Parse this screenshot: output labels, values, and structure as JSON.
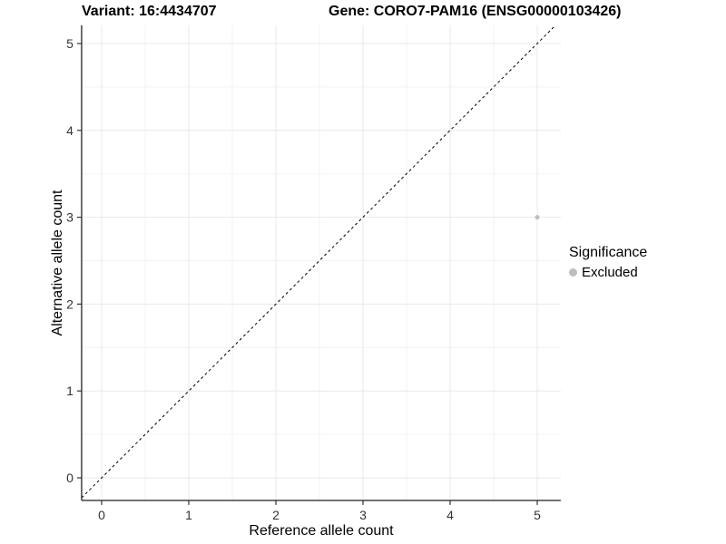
{
  "chart_data": {
    "type": "scatter",
    "title_left": "Variant: 16:4434707",
    "title_right": "Gene: CORO7-PAM16 (ENSG00000103426)",
    "xlabel": "Reference allele count",
    "ylabel": "Alternative allele count",
    "xticks": [
      0,
      1,
      2,
      3,
      4,
      5
    ],
    "yticks": [
      0,
      1,
      2,
      3,
      4,
      5
    ],
    "xlim": [
      -0.23,
      5.27
    ],
    "ylim": [
      -0.26,
      5.21
    ],
    "grid": {
      "major": true,
      "minor": true,
      "major_color": "#e8e8e8",
      "minor_color": "#f3f3f3"
    },
    "points": [
      {
        "x": 5,
        "y": 3,
        "series": "Excluded",
        "color": "#bebebe"
      }
    ],
    "reference_line": {
      "type": "identity",
      "slope": 1,
      "intercept": 0,
      "style": "dashed",
      "color": "#000000"
    },
    "axis_color": "#333333",
    "tick_label_color": "#333333",
    "legend": {
      "title": "Significance",
      "position": "right",
      "entries": [
        {
          "label": "Excluded",
          "color": "#bebebe"
        }
      ]
    }
  }
}
